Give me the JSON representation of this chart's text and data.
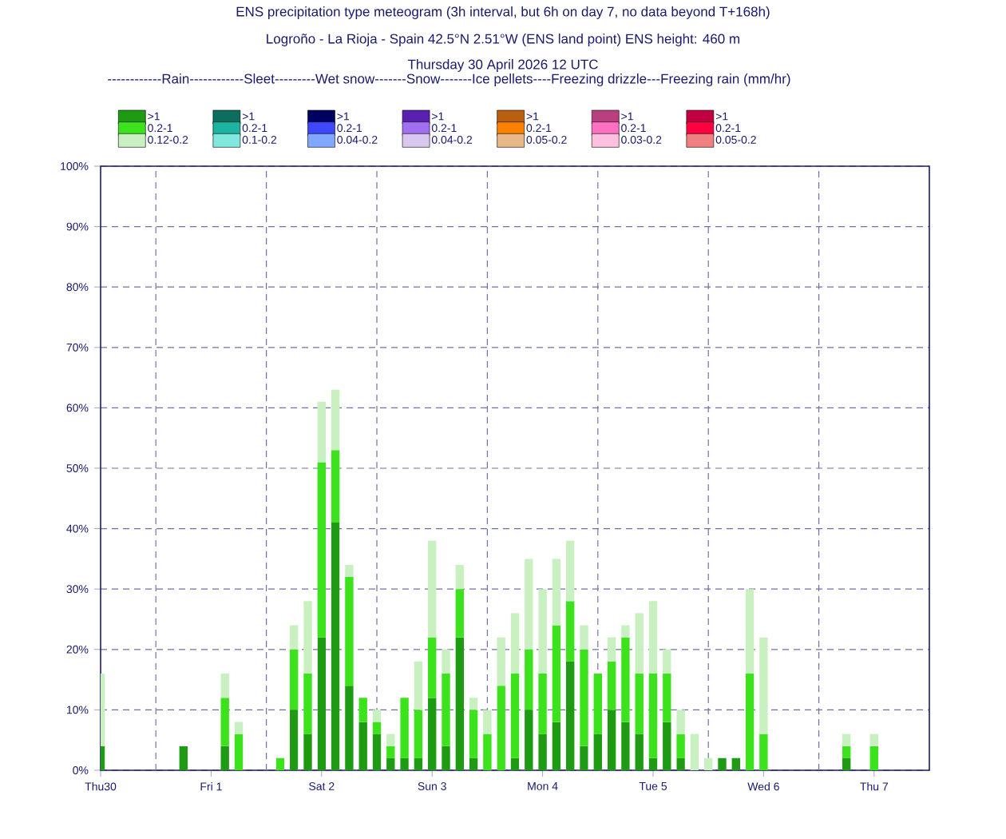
{
  "chart_data": {
    "type": "bar",
    "stacked": true,
    "title": "ENS precipitation type meteogram (3h interval, but 6h on day 7, no data beyond T+168h)",
    "subtitle": "Logroño - La Rioja - Spain 42.5°N 2.51°W (ENS land point) ENS height: 460 m",
    "annotations": [
      "Thursday 30 April 2026 12 UTC"
    ],
    "legend_title": "------------Rain------------Sleet---------Wet snow-------Snow-------Ice pellets----Freezing drizzle---Freezing rain (mm/hr)",
    "legend": "top",
    "grid": "y",
    "x": [
      "2026-04-30T12:00",
      "2026-05-01T06:00",
      "2026-05-01T15:00",
      "2026-05-01T18:00",
      "2026-05-02T03:00",
      "2026-05-02T06:00",
      "2026-05-02T09:00",
      "2026-05-02T12:00",
      "2026-05-02T15:00",
      "2026-05-02T18:00",
      "2026-05-02T21:00",
      "2026-05-03T00:00",
      "2026-05-03T03:00",
      "2026-05-03T06:00",
      "2026-05-03T09:00",
      "2026-05-03T12:00",
      "2026-05-03T15:00",
      "2026-05-03T18:00",
      "2026-05-03T21:00",
      "2026-05-04T00:00",
      "2026-05-04T03:00",
      "2026-05-04T06:00",
      "2026-05-04T09:00",
      "2026-05-04T12:00",
      "2026-05-04T15:00",
      "2026-05-04T18:00",
      "2026-05-04T21:00",
      "2026-05-05T00:00",
      "2026-05-05T03:00",
      "2026-05-05T06:00",
      "2026-05-05T09:00",
      "2026-05-05T12:00",
      "2026-05-05T15:00",
      "2026-05-05T18:00",
      "2026-05-05T21:00",
      "2026-05-06T00:00",
      "2026-05-06T03:00",
      "2026-05-06T06:00",
      "2026-05-06T09:00",
      "2026-05-06T12:00",
      "2026-05-07T06:00",
      "2026-05-07T12:00"
    ],
    "xlim": [
      "2026-04-30T12:00",
      "2026-05-08T00:00"
    ],
    "xticks": [
      {
        "value": "2026-04-30T12:00",
        "label": "Thu30"
      },
      {
        "value": "2026-05-01T12:00",
        "label": "Fri 1"
      },
      {
        "value": "2026-05-02T12:00",
        "label": "Sat 2"
      },
      {
        "value": "2026-05-03T12:00",
        "label": "Sun 3"
      },
      {
        "value": "2026-05-04T12:00",
        "label": "Mon 4"
      },
      {
        "value": "2026-05-05T12:00",
        "label": "Tue 5"
      },
      {
        "value": "2026-05-06T12:00",
        "label": "Wed 6"
      },
      {
        "value": "2026-05-07T12:00",
        "label": "Thu 7"
      }
    ],
    "ylim": [
      0,
      100
    ],
    "yticks": [
      {
        "value": 0,
        "label": "0%"
      },
      {
        "value": 10,
        "label": "10%"
      },
      {
        "value": 20,
        "label": "20%"
      },
      {
        "value": 30,
        "label": "30%"
      },
      {
        "value": 40,
        "label": "40%"
      },
      {
        "value": 50,
        "label": "50%"
      },
      {
        "value": 60,
        "label": "60%"
      },
      {
        "value": 70,
        "label": "70%"
      },
      {
        "value": 80,
        "label": "80%"
      },
      {
        "value": 90,
        "label": "90%"
      },
      {
        "value": 100,
        "label": "100%"
      }
    ],
    "ref_lines": [
      {
        "axis": "x",
        "value": "2026-05-01T00:00",
        "color": "#7070a8",
        "line_style": "dashed"
      },
      {
        "axis": "x",
        "value": "2026-05-02T00:00",
        "color": "#7070a8",
        "line_style": "dashed"
      },
      {
        "axis": "x",
        "value": "2026-05-03T00:00",
        "color": "#7070a8",
        "line_style": "dashed"
      },
      {
        "axis": "x",
        "value": "2026-05-04T00:00",
        "color": "#7070a8",
        "line_style": "dashed"
      },
      {
        "axis": "x",
        "value": "2026-05-05T00:00",
        "color": "#7070a8",
        "line_style": "dashed"
      },
      {
        "axis": "x",
        "value": "2026-05-06T00:00",
        "color": "#7070a8",
        "line_style": "dashed"
      },
      {
        "axis": "x",
        "value": "2026-05-07T00:00",
        "color": "#7070a8",
        "line_style": "dashed"
      }
    ],
    "series": [
      {
        "name": ">1",
        "color": "#1e9b12",
        "values": [
          4,
          4,
          4,
          null,
          null,
          10,
          6,
          22,
          41,
          14,
          8,
          6,
          2,
          2,
          2,
          12,
          4,
          22,
          2,
          null,
          null,
          2,
          10,
          6,
          8,
          18,
          4,
          6,
          10,
          8,
          6,
          2,
          8,
          2,
          null,
          null,
          2,
          2,
          null,
          null,
          2,
          null
        ]
      },
      {
        "name": "0.2-1",
        "color": "#3ce21c",
        "values": [
          null,
          null,
          8,
          6,
          2,
          10,
          10,
          29,
          12,
          18,
          4,
          2,
          2,
          10,
          8,
          10,
          12,
          8,
          8,
          6,
          14,
          14,
          10,
          10,
          16,
          10,
          16,
          10,
          8,
          14,
          10,
          14,
          8,
          4,
          null,
          null,
          null,
          null,
          16,
          6,
          2,
          4
        ]
      },
      {
        "name": "0.12-0.2",
        "color": "#c8f0c0",
        "values": [
          12,
          null,
          4,
          2,
          null,
          4,
          12,
          10,
          10,
          2,
          null,
          2,
          2,
          null,
          8,
          16,
          4,
          4,
          2,
          4,
          8,
          10,
          15,
          14,
          11,
          10,
          4,
          null,
          4,
          2,
          10,
          12,
          4,
          4,
          6,
          2,
          null,
          null,
          14,
          16,
          2,
          2
        ]
      },
      {
        "name": ">1",
        "color": "#0c6e5c",
        "values": [
          null,
          null,
          null,
          null,
          null,
          null,
          null,
          null,
          null,
          null,
          null,
          null,
          null,
          null,
          null,
          null,
          null,
          null,
          null,
          null,
          null,
          null,
          null,
          null,
          null,
          null,
          null,
          null,
          null,
          null,
          null,
          null,
          null,
          null,
          null,
          null,
          null,
          null,
          null,
          null,
          null,
          null
        ]
      },
      {
        "name": "0.2-1",
        "color": "#1cb4a0",
        "values": [
          null,
          null,
          null,
          null,
          null,
          null,
          null,
          null,
          null,
          null,
          null,
          null,
          null,
          null,
          null,
          null,
          null,
          null,
          null,
          null,
          null,
          null,
          null,
          null,
          null,
          null,
          null,
          null,
          null,
          null,
          null,
          null,
          null,
          null,
          null,
          null,
          null,
          null,
          null,
          null,
          null,
          null
        ]
      },
      {
        "name": "0.1-0.2",
        "color": "#80e8dc",
        "values": [
          null,
          null,
          null,
          null,
          null,
          null,
          null,
          null,
          null,
          null,
          null,
          null,
          null,
          null,
          null,
          null,
          null,
          null,
          null,
          null,
          null,
          null,
          null,
          null,
          null,
          null,
          null,
          null,
          null,
          null,
          null,
          null,
          null,
          null,
          null,
          null,
          null,
          null,
          null,
          null,
          null,
          null
        ]
      },
      {
        "name": ">1",
        "color": "#000060",
        "values": [
          null,
          null,
          null,
          null,
          null,
          null,
          null,
          null,
          null,
          null,
          null,
          null,
          null,
          null,
          null,
          null,
          null,
          null,
          null,
          null,
          null,
          null,
          null,
          null,
          null,
          null,
          null,
          null,
          null,
          null,
          null,
          null,
          null,
          null,
          null,
          null,
          null,
          null,
          null,
          null,
          null,
          null
        ]
      },
      {
        "name": "0.2-1",
        "color": "#4048ff",
        "values": [
          null,
          null,
          null,
          null,
          null,
          null,
          null,
          null,
          null,
          null,
          null,
          null,
          null,
          null,
          null,
          null,
          null,
          null,
          null,
          null,
          null,
          null,
          null,
          null,
          null,
          null,
          null,
          null,
          null,
          null,
          null,
          null,
          null,
          null,
          null,
          null,
          null,
          null,
          null,
          null,
          null,
          null
        ]
      },
      {
        "name": "0.04-0.2",
        "color": "#80a8ff",
        "values": [
          null,
          null,
          null,
          null,
          null,
          null,
          null,
          null,
          null,
          null,
          null,
          null,
          null,
          null,
          null,
          null,
          null,
          null,
          null,
          null,
          null,
          null,
          null,
          null,
          null,
          null,
          null,
          null,
          null,
          null,
          null,
          null,
          null,
          null,
          null,
          null,
          null,
          null,
          null,
          null,
          null,
          null
        ]
      },
      {
        "name": ">1",
        "color": "#5a20b0",
        "values": [
          null,
          null,
          null,
          null,
          null,
          null,
          null,
          null,
          null,
          null,
          null,
          null,
          null,
          null,
          null,
          null,
          null,
          null,
          null,
          null,
          null,
          null,
          null,
          null,
          null,
          null,
          null,
          null,
          null,
          null,
          null,
          null,
          null,
          null,
          null,
          null,
          null,
          null,
          null,
          null,
          null,
          null
        ]
      },
      {
        "name": "0.2-1",
        "color": "#a070f0",
        "values": [
          null,
          null,
          null,
          null,
          null,
          null,
          null,
          null,
          null,
          null,
          null,
          null,
          null,
          null,
          null,
          null,
          null,
          null,
          null,
          null,
          null,
          null,
          null,
          null,
          null,
          null,
          null,
          null,
          null,
          null,
          null,
          null,
          null,
          null,
          null,
          null,
          null,
          null,
          null,
          null,
          null,
          null
        ]
      },
      {
        "name": "0.04-0.2",
        "color": "#d8c8f0",
        "values": [
          null,
          null,
          null,
          null,
          null,
          null,
          null,
          null,
          null,
          null,
          null,
          null,
          null,
          null,
          null,
          null,
          null,
          null,
          null,
          null,
          null,
          null,
          null,
          null,
          null,
          null,
          null,
          null,
          null,
          null,
          null,
          null,
          null,
          null,
          null,
          null,
          null,
          null,
          null,
          null,
          null,
          null
        ]
      },
      {
        "name": ">1",
        "color": "#b86010",
        "values": [
          null,
          null,
          null,
          null,
          null,
          null,
          null,
          null,
          null,
          null,
          null,
          null,
          null,
          null,
          null,
          null,
          null,
          null,
          null,
          null,
          null,
          null,
          null,
          null,
          null,
          null,
          null,
          null,
          null,
          null,
          null,
          null,
          null,
          null,
          null,
          null,
          null,
          null,
          null,
          null,
          null,
          null
        ]
      },
      {
        "name": "0.2-1",
        "color": "#ff8000",
        "values": [
          null,
          null,
          null,
          null,
          null,
          null,
          null,
          null,
          null,
          null,
          null,
          null,
          null,
          null,
          null,
          null,
          null,
          null,
          null,
          null,
          null,
          null,
          null,
          null,
          null,
          null,
          null,
          null,
          null,
          null,
          null,
          null,
          null,
          null,
          null,
          null,
          null,
          null,
          null,
          null,
          null,
          null
        ]
      },
      {
        "name": "0.05-0.2",
        "color": "#e8b888",
        "values": [
          null,
          null,
          null,
          null,
          null,
          null,
          null,
          null,
          null,
          null,
          null,
          null,
          null,
          null,
          null,
          null,
          null,
          null,
          null,
          null,
          null,
          null,
          null,
          null,
          null,
          null,
          null,
          null,
          null,
          null,
          null,
          null,
          null,
          null,
          null,
          null,
          null,
          null,
          null,
          null,
          null,
          null
        ]
      },
      {
        "name": ">1",
        "color": "#b84080",
        "values": [
          null,
          null,
          null,
          null,
          null,
          null,
          null,
          null,
          null,
          null,
          null,
          null,
          null,
          null,
          null,
          null,
          null,
          null,
          null,
          null,
          null,
          null,
          null,
          null,
          null,
          null,
          null,
          null,
          null,
          null,
          null,
          null,
          null,
          null,
          null,
          null,
          null,
          null,
          null,
          null,
          null,
          null
        ]
      },
      {
        "name": "0.2-1",
        "color": "#ff70c0",
        "values": [
          null,
          null,
          null,
          null,
          null,
          null,
          null,
          null,
          null,
          null,
          null,
          null,
          null,
          null,
          null,
          null,
          null,
          null,
          null,
          null,
          null,
          null,
          null,
          null,
          null,
          null,
          null,
          null,
          null,
          null,
          null,
          null,
          null,
          null,
          null,
          null,
          null,
          null,
          null,
          null,
          null,
          null
        ]
      },
      {
        "name": "0.03-0.2",
        "color": "#ffc0e0",
        "values": [
          null,
          null,
          null,
          null,
          null,
          null,
          null,
          null,
          null,
          null,
          null,
          null,
          null,
          null,
          null,
          null,
          null,
          null,
          null,
          null,
          null,
          null,
          null,
          null,
          null,
          null,
          null,
          null,
          null,
          null,
          null,
          null,
          null,
          null,
          null,
          null,
          null,
          null,
          null,
          null,
          null,
          null
        ]
      },
      {
        "name": ">1",
        "color": "#c00040",
        "values": [
          null,
          null,
          null,
          null,
          null,
          null,
          null,
          null,
          null,
          null,
          null,
          null,
          null,
          null,
          null,
          null,
          null,
          null,
          null,
          null,
          null,
          null,
          null,
          null,
          null,
          null,
          null,
          null,
          null,
          null,
          null,
          null,
          null,
          null,
          null,
          null,
          null,
          null,
          null,
          null,
          null,
          null
        ]
      },
      {
        "name": "0.2-1",
        "color": "#ff0040",
        "values": [
          null,
          null,
          null,
          null,
          null,
          null,
          null,
          null,
          null,
          null,
          null,
          null,
          null,
          null,
          null,
          null,
          null,
          null,
          null,
          null,
          null,
          null,
          null,
          null,
          null,
          null,
          null,
          null,
          null,
          null,
          null,
          null,
          null,
          null,
          null,
          null,
          null,
          null,
          null,
          null,
          null,
          null
        ]
      },
      {
        "name": "0.05-0.2",
        "color": "#f08080",
        "values": [
          null,
          null,
          null,
          null,
          null,
          null,
          null,
          null,
          null,
          null,
          null,
          null,
          null,
          null,
          null,
          null,
          null,
          null,
          null,
          null,
          null,
          null,
          null,
          null,
          null,
          null,
          null,
          null,
          null,
          null,
          null,
          null,
          null,
          null,
          null,
          null,
          null,
          null,
          null,
          null,
          null,
          null
        ]
      }
    ]
  }
}
